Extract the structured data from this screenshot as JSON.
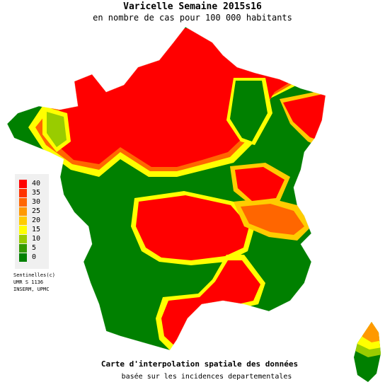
{
  "header": {
    "title": "Varicelle Semaine 2015s16",
    "subtitle": "en nombre de cas pour 100 000 habitants"
  },
  "legend": {
    "items": [
      {
        "label": "40",
        "color": "#ff0000"
      },
      {
        "label": "35",
        "color": "#ff3300"
      },
      {
        "label": "30",
        "color": "#ff6600"
      },
      {
        "label": "25",
        "color": "#ff9900"
      },
      {
        "label": "20",
        "color": "#ffcc00"
      },
      {
        "label": "15",
        "color": "#ffff00"
      },
      {
        "label": "10",
        "color": "#99cc00"
      },
      {
        "label": "5",
        "color": "#339900"
      },
      {
        "label": "0",
        "color": "#008000"
      }
    ]
  },
  "credits": {
    "line1": "Sentinelles(c)",
    "line2": "UMR S 1136",
    "line3": "INSERM, UPMC"
  },
  "footer": {
    "line1": "Carte d'interpolation spatiale des données",
    "line2": "basée sur les incidences departementales"
  },
  "colors": {
    "high": "#ff0000",
    "low": "#008000",
    "mid": "#ffff00"
  }
}
